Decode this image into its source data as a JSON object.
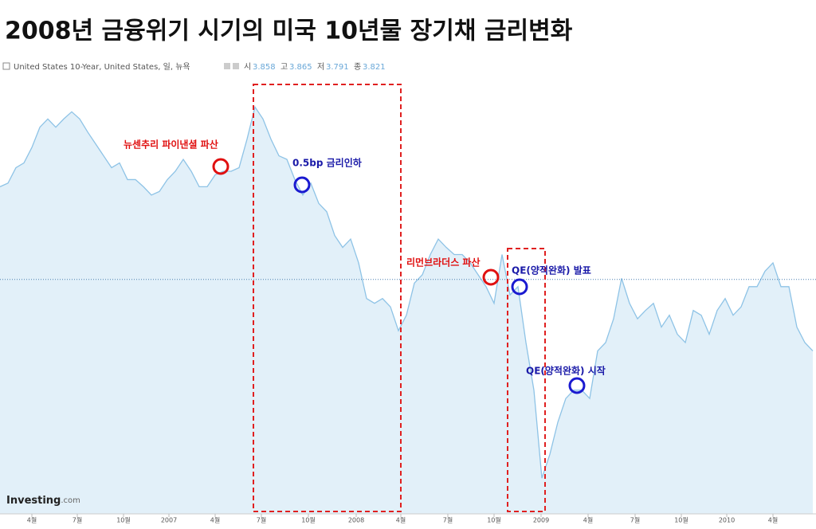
{
  "title": "2008년 금융위기 시기의 미국 10년물 장기채 금리변화",
  "instrument": "United States 10-Year, United States, 일, 뉴욕",
  "quote": [
    {
      "label": "시",
      "value": 3.858
    },
    {
      "label": "고",
      "value": 3.865
    },
    {
      "label": "저",
      "value": 3.791
    },
    {
      "label": "종",
      "value": 3.821
    }
  ],
  "logo": {
    "brand": "Investing",
    "suffix": ".com"
  },
  "chart_data": {
    "type": "area",
    "color": "#8ec3e6",
    "fill": "#e2f0f9",
    "values": [
      4.6,
      4.63,
      4.76,
      4.8,
      4.93,
      5.1,
      5.17,
      5.1,
      5.17,
      5.23,
      5.17,
      5.06,
      4.96,
      4.86,
      4.76,
      4.8,
      4.66,
      4.66,
      4.6,
      4.53,
      4.56,
      4.66,
      4.73,
      4.83,
      4.73,
      4.6,
      4.6,
      4.7,
      4.73,
      4.73,
      4.76,
      5.0,
      5.27,
      5.17,
      5.0,
      4.86,
      4.83,
      4.66,
      4.53,
      4.63,
      4.46,
      4.39,
      4.19,
      4.09,
      4.16,
      3.96,
      3.66,
      3.62,
      3.66,
      3.59,
      3.39,
      3.52,
      3.79,
      3.86,
      4.03,
      4.16,
      4.09,
      4.03,
      4.03,
      3.96,
      3.86,
      3.76,
      3.62,
      4.03,
      3.69,
      3.76,
      3.29,
      2.89,
      2.15,
      2.35,
      2.62,
      2.82,
      2.89,
      2.89,
      2.82,
      3.22,
      3.29,
      3.49,
      3.83,
      3.62,
      3.49,
      3.56,
      3.62,
      3.42,
      3.52,
      3.36,
      3.29,
      3.56,
      3.52,
      3.36,
      3.56,
      3.66,
      3.52,
      3.59,
      3.76,
      3.76,
      3.89,
      3.96,
      3.76,
      3.76,
      3.42,
      3.29,
      3.22
    ],
    "xlim": [
      0,
      102.4
    ],
    "ylim": [
      1.85,
      5.5
    ],
    "xticks": [
      {
        "value": 4,
        "label": "4월"
      },
      {
        "value": 9.7,
        "label": "7월"
      },
      {
        "value": 15.5,
        "label": "10월"
      },
      {
        "value": 21.2,
        "label": "2007"
      },
      {
        "value": 27,
        "label": "4월"
      },
      {
        "value": 32.8,
        "label": "7월"
      },
      {
        "value": 38.7,
        "label": "10월"
      },
      {
        "value": 44.7,
        "label": "2008"
      },
      {
        "value": 50.3,
        "label": "4월"
      },
      {
        "value": 56.2,
        "label": "7월"
      },
      {
        "value": 62,
        "label": "10월"
      },
      {
        "value": 67.9,
        "label": "2009"
      },
      {
        "value": 73.8,
        "label": "4월"
      },
      {
        "value": 79.7,
        "label": "7월"
      },
      {
        "value": 85.5,
        "label": "10월"
      },
      {
        "value": 91.2,
        "label": "2010"
      },
      {
        "value": 97,
        "label": "4월"
      }
    ],
    "annotations": [
      {
        "text": "뉴센추리 파이낸셜 파산",
        "color": "#e01010"
      },
      {
        "text": "0.5bp 금리인하",
        "color": "#1a1aa8"
      },
      {
        "text": "리먼브라더스 파산",
        "color": "#e01010"
      },
      {
        "text": "QE(양적완화) 발표",
        "color": "#1a1aa8"
      },
      {
        "text": "QE(양적완화) 시작",
        "color": "#1a1aa8"
      }
    ]
  }
}
